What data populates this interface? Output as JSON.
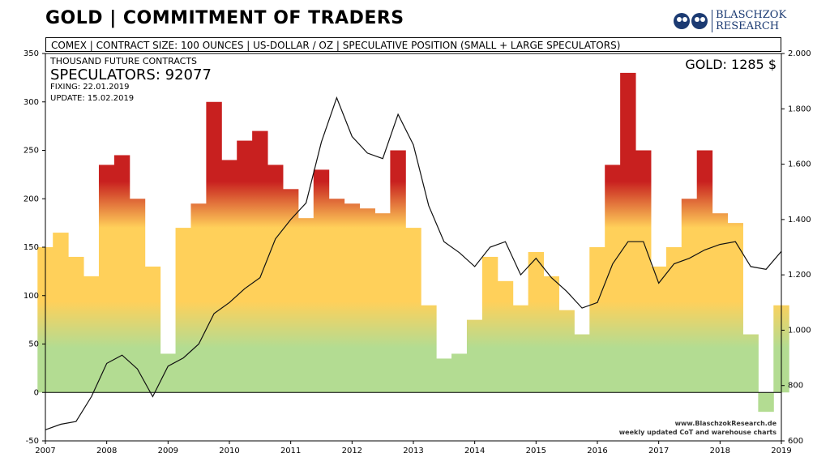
{
  "header": {
    "title": "GOLD | COMMITMENT OF TRADERS",
    "brand_line1": "BLASCHZOK",
    "brand_line2": "RESEARCH",
    "subtitle": "COMEX  |  CONTRACT SIZE: 100 OUNCES  |  US-DOLLAR / OZ  |  SPECULATIVE  POSITION (SMALL + LARGE SPECULATORS)"
  },
  "annotations": {
    "units": "THOUSAND FUTURE CONTRACTS",
    "speculators": "SPECULATORS: 92077",
    "fixing": "FIXING: 22.01.2019",
    "update": "UPDATE: 15.02.2019",
    "gold_price": "GOLD: 1285 $",
    "credit1": "www.BlaschzokResearch.de",
    "credit2": "weekly updated CoT and warehouse charts"
  },
  "chart_data": {
    "type": "bar",
    "x_ticks": [
      "2007",
      "2008",
      "2009",
      "2010",
      "2011",
      "2012",
      "2013",
      "2014",
      "2015",
      "2016",
      "2017",
      "2018",
      "2019"
    ],
    "y_left_ticks": [
      "350",
      "300",
      "250",
      "200",
      "150",
      "100",
      "50",
      "0",
      "-50"
    ],
    "y_right_ticks": [
      "2.000",
      "1.800",
      "1.600",
      "1.400",
      "1.200",
      "1.000",
      "800",
      "600"
    ],
    "ylim_left": [
      -50,
      350
    ],
    "ylim_right": [
      600,
      2000
    ],
    "xlim": [
      2007.0,
      2019.0
    ],
    "grid": false,
    "legend": "none",
    "colors": {
      "high": "#c8201f",
      "mid": "#ffd05a",
      "low": "#b3dc92",
      "line": "#111111"
    },
    "series": [
      {
        "kind": "bar",
        "x": [
          2007.0,
          2007.25,
          2007.5,
          2007.75,
          2008.0,
          2008.25,
          2008.5,
          2008.75,
          2009.0,
          2009.25,
          2009.5,
          2009.75,
          2010.0,
          2010.25,
          2010.5,
          2010.75,
          2011.0,
          2011.25,
          2011.5,
          2011.75,
          2012.0,
          2012.25,
          2012.5,
          2012.75,
          2013.0,
          2013.25,
          2013.5,
          2013.75,
          2014.0,
          2014.25,
          2014.5,
          2014.75,
          2015.0,
          2015.25,
          2015.5,
          2015.75,
          2016.0,
          2016.25,
          2016.5,
          2016.75,
          2017.0,
          2017.25,
          2017.5,
          2017.75,
          2018.0,
          2018.25,
          2018.5,
          2018.75,
          2019.0
        ],
        "values": [
          150,
          165,
          140,
          120,
          235,
          245,
          200,
          130,
          40,
          170,
          195,
          300,
          240,
          260,
          270,
          235,
          210,
          180,
          230,
          200,
          195,
          190,
          185,
          250,
          170,
          90,
          35,
          40,
          75,
          140,
          115,
          90,
          145,
          120,
          85,
          60,
          150,
          235,
          330,
          250,
          130,
          150,
          200,
          250,
          185,
          175,
          60,
          -20,
          90
        ]
      },
      {
        "name": "GOLD",
        "kind": "line",
        "x": [
          2007.0,
          2007.25,
          2007.5,
          2007.75,
          2008.0,
          2008.25,
          2008.5,
          2008.75,
          2009.0,
          2009.25,
          2009.5,
          2009.75,
          2010.0,
          2010.25,
          2010.5,
          2010.75,
          2011.0,
          2011.25,
          2011.5,
          2011.75,
          2012.0,
          2012.25,
          2012.5,
          2012.75,
          2013.0,
          2013.25,
          2013.5,
          2013.75,
          2014.0,
          2014.25,
          2014.5,
          2014.75,
          2015.0,
          2015.25,
          2015.5,
          2015.75,
          2016.0,
          2016.25,
          2016.5,
          2016.75,
          2017.0,
          2017.25,
          2017.5,
          2017.75,
          2018.0,
          2018.25,
          2018.5,
          2018.75,
          2019.0
        ],
        "values": [
          640,
          660,
          670,
          760,
          880,
          910,
          860,
          760,
          870,
          900,
          950,
          1060,
          1100,
          1150,
          1190,
          1330,
          1400,
          1460,
          1680,
          1840,
          1700,
          1640,
          1620,
          1780,
          1670,
          1450,
          1320,
          1280,
          1230,
          1300,
          1320,
          1200,
          1260,
          1190,
          1140,
          1080,
          1100,
          1240,
          1320,
          1320,
          1170,
          1240,
          1260,
          1290,
          1310,
          1320,
          1230,
          1220,
          1285
        ]
      }
    ]
  }
}
